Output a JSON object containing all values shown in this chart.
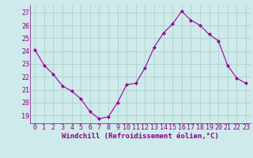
{
  "x": [
    0,
    1,
    2,
    3,
    4,
    5,
    6,
    7,
    8,
    9,
    10,
    11,
    12,
    13,
    14,
    15,
    16,
    17,
    18,
    19,
    20,
    21,
    22,
    23
  ],
  "y": [
    24.1,
    22.9,
    22.2,
    21.3,
    20.9,
    20.3,
    19.3,
    18.75,
    18.9,
    20.0,
    21.4,
    21.5,
    22.7,
    24.3,
    25.4,
    26.1,
    27.1,
    26.4,
    26.0,
    25.3,
    24.8,
    22.9,
    21.9,
    21.5
  ],
  "line_color": "#990099",
  "marker": "D",
  "marker_size": 2,
  "bg_color": "#ceeaea",
  "grid_color": "#aacaca",
  "xlabel": "Windchill (Refroidissement éolien,°C)",
  "xlabel_fontsize": 6.5,
  "yticks": [
    19,
    20,
    21,
    22,
    23,
    24,
    25,
    26,
    27
  ],
  "xticks": [
    0,
    1,
    2,
    3,
    4,
    5,
    6,
    7,
    8,
    9,
    10,
    11,
    12,
    13,
    14,
    15,
    16,
    17,
    18,
    19,
    20,
    21,
    22,
    23
  ],
  "ylim": [
    18.4,
    27.6
  ],
  "xlim": [
    -0.5,
    23.5
  ],
  "tick_color": "#880088",
  "tick_fontsize": 6,
  "label_color": "#880088"
}
